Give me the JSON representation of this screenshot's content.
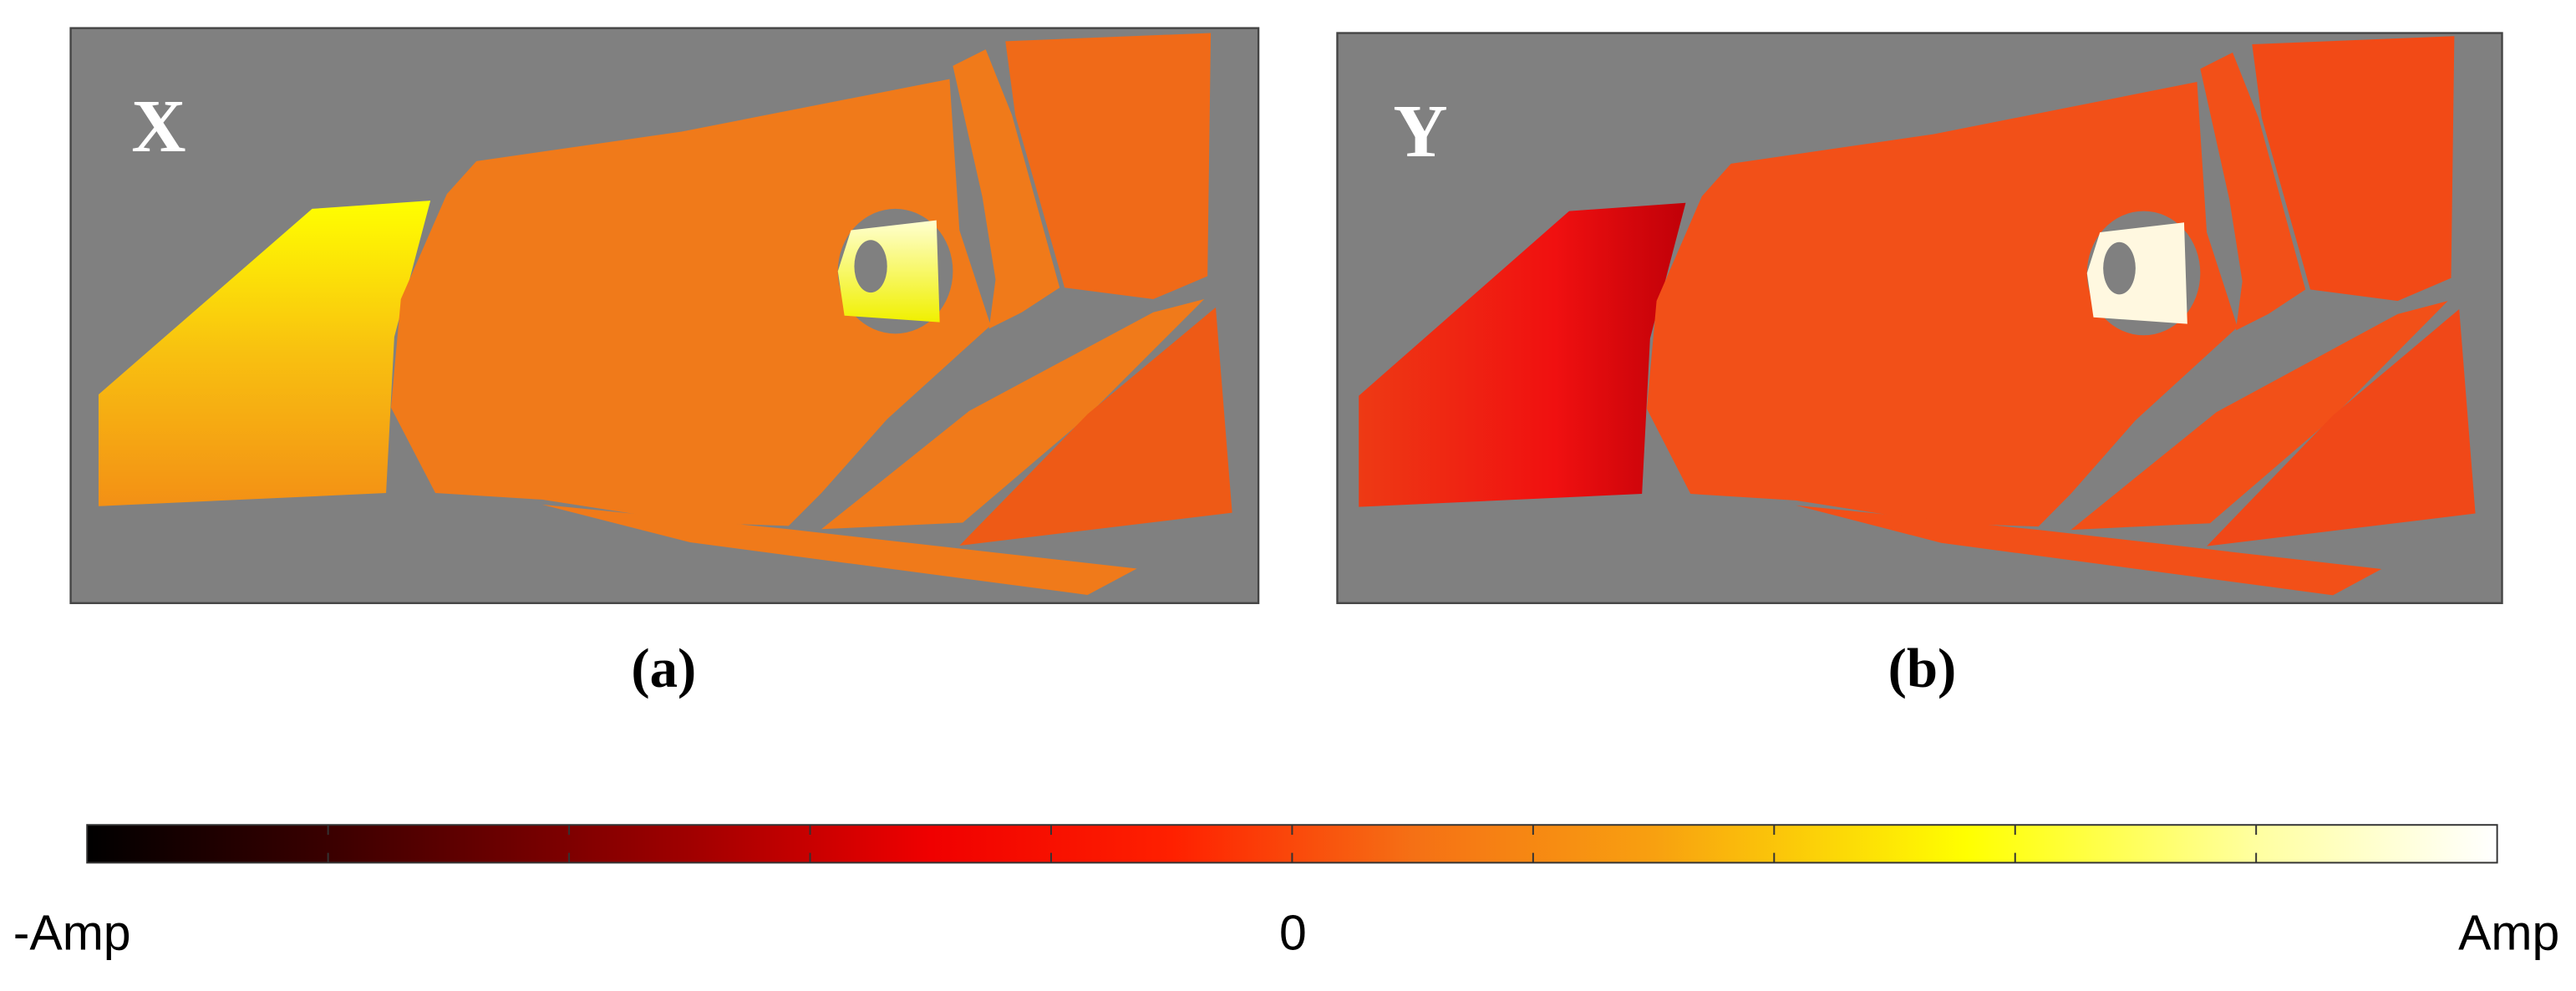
{
  "panels": [
    {
      "label": "X",
      "caption": "(a)"
    },
    {
      "label": "Y",
      "caption": "(b)"
    }
  ],
  "colorbar": {
    "labels": [
      "-Amp",
      "0",
      "Amp"
    ]
  }
}
